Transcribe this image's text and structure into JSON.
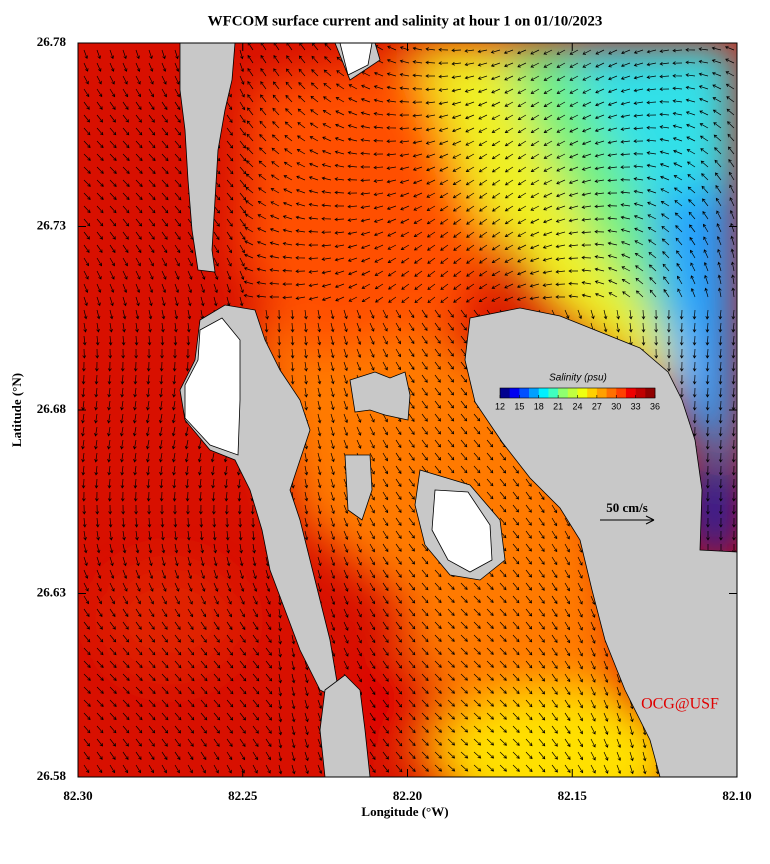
{
  "title": "WFCOM surface current and salinity at hour 1 on 01/10/2023",
  "map": {
    "x_label": "Longitude (°W)",
    "y_label": "Latitude (°N)",
    "xlim": [
      82.3,
      82.1
    ],
    "ylim": [
      26.58,
      26.78
    ],
    "xticks": [
      {
        "value": 82.3,
        "label": "82.30"
      },
      82.25,
      {
        "value": 82.2,
        "label": "82.20"
      },
      82.15,
      {
        "value": 82.1,
        "label": "82.10"
      }
    ],
    "yticks": [
      26.58,
      26.63,
      26.68,
      26.73,
      26.78
    ]
  },
  "colorbar": {
    "title": "Salinity (psu)",
    "range": [
      12,
      36
    ],
    "ticks": [
      12,
      15,
      18,
      21,
      24,
      27,
      30,
      33,
      36
    ],
    "colors": [
      "#00008f",
      "#0000ef",
      "#0050ff",
      "#00a0ff",
      "#00efff",
      "#40ffbf",
      "#8fff70",
      "#c0ff40",
      "#efff10",
      "#ffd000",
      "#ffa000",
      "#ff7000",
      "#ff4000",
      "#ef0000",
      "#bf0000",
      "#8f0000"
    ]
  },
  "scale_label": "50 cm/s",
  "credit": "OCG@USF"
}
